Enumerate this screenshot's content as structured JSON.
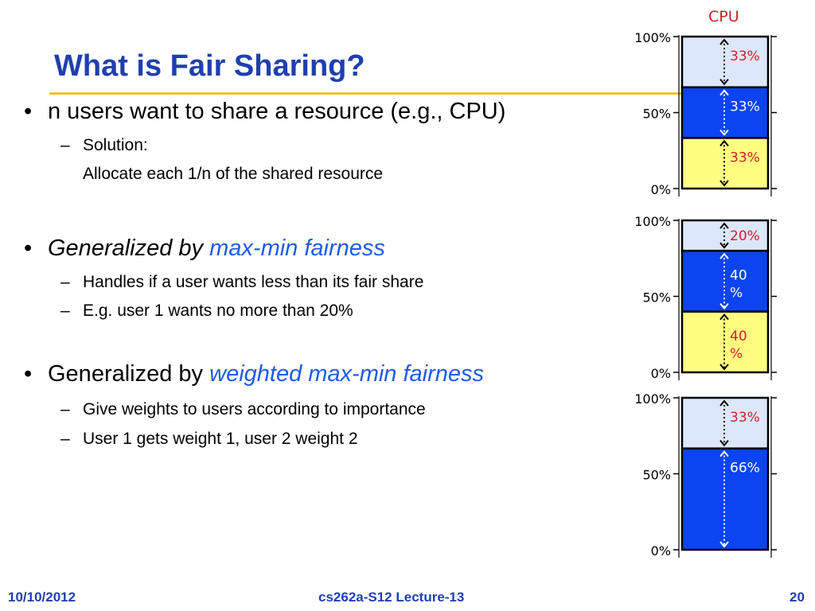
{
  "slide": {
    "title": "What is Fair Sharing?",
    "bullets": [
      {
        "text": "n users want to share a resource (e.g., CPU)",
        "sub": [
          "Solution:"
        ],
        "continuation": "Allocate each 1/n of the shared resource"
      },
      {
        "prefix": "Generalized by ",
        "highlight": "max-min fairness",
        "sub": [
          "Handles if a user wants less than its fair share",
          "E.g. user 1 wants no more than 20%"
        ]
      },
      {
        "prefix": "Generalized by ",
        "highlight": "weighted max-min fairness",
        "sub": [
          "Give weights to users according to importance",
          "User 1 gets weight 1, user 2 weight 2"
        ]
      }
    ],
    "footer": {
      "date": "10/10/2012",
      "course": "cs262a-S12 Lecture-13",
      "page": "20"
    },
    "colors": {
      "title": "#1f3fb0",
      "rule": "#f2c230",
      "highlight": "#1e5be6",
      "label_red": "#d01f2a"
    }
  },
  "chart_data": [
    {
      "type": "stacked-bar",
      "title": "CPU",
      "yticks": [
        "100%",
        "50%",
        "0%"
      ],
      "segments": [
        {
          "value": 33,
          "color": "#fefe80",
          "label": "33%"
        },
        {
          "value": 33,
          "color": "#0b44f0",
          "label": "33%"
        },
        {
          "value": 33,
          "color": "#dde7fb",
          "label": "33%"
        }
      ]
    },
    {
      "type": "stacked-bar",
      "yticks": [
        "100%",
        "50%",
        "0%"
      ],
      "segments": [
        {
          "value": 40,
          "color": "#fefe80",
          "label": "40 %"
        },
        {
          "value": 40,
          "color": "#0b44f0",
          "label": "40 %"
        },
        {
          "value": 20,
          "color": "#dde7fb",
          "label": "20%"
        }
      ]
    },
    {
      "type": "stacked-bar",
      "yticks": [
        "100%",
        "50%",
        "0%"
      ],
      "segments": [
        {
          "value": 66,
          "color": "#0b44f0",
          "label": "66%"
        },
        {
          "value": 33,
          "color": "#dde7fb",
          "label": "33%"
        }
      ]
    }
  ]
}
